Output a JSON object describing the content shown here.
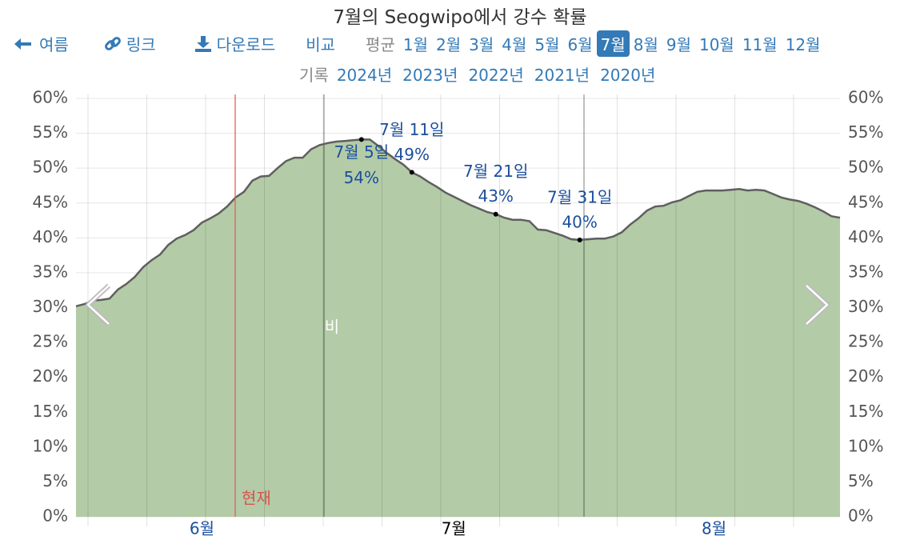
{
  "header": {
    "title": "7월의 Seogwipo에서 강수 확률"
  },
  "nav": {
    "back": "여름",
    "link": "링크",
    "download": "다운로드",
    "compare": "비교",
    "average": "평균",
    "months": [
      "1월",
      "2월",
      "3월",
      "4월",
      "5월",
      "6월",
      "7월",
      "8월",
      "9월",
      "10월",
      "11월",
      "12월"
    ],
    "active_month_index": 6,
    "history": "기록",
    "years": [
      "2024년",
      "2023년",
      "2022년",
      "2021년",
      "2020년"
    ]
  },
  "chart_data": {
    "type": "area",
    "categories": [
      null,
      null,
      null,
      null,
      null,
      null,
      null,
      null,
      null,
      null,
      null,
      null,
      null,
      null,
      null,
      "6월",
      null,
      null,
      null,
      null,
      null,
      null,
      null,
      null,
      null,
      null,
      null,
      null,
      null,
      null,
      null,
      null,
      null,
      null,
      null,
      null,
      null,
      null,
      null,
      null,
      null,
      null,
      null,
      null,
      null,
      "7월",
      null,
      null,
      null,
      null,
      null,
      null,
      null,
      null,
      null,
      null,
      null,
      null,
      null,
      null,
      null,
      null,
      null,
      null,
      null,
      null,
      null,
      null,
      null,
      null,
      null,
      null,
      null,
      null,
      null,
      null,
      "8월",
      null,
      null,
      null,
      null,
      null,
      null,
      null,
      null,
      null,
      null,
      null,
      null,
      null,
      null,
      null
    ],
    "series": [
      {
        "name": "비",
        "color": "#b3cba7",
        "line_color": "#5f5f5f",
        "values": [
          30.2,
          30.5,
          31.0,
          31.1,
          31.3,
          32.6,
          33.4,
          34.4,
          35.8,
          36.8,
          37.6,
          39.0,
          39.9,
          40.4,
          41.1,
          42.2,
          42.8,
          43.5,
          44.5,
          45.8,
          46.6,
          48.2,
          48.8,
          48.9,
          50.0,
          51.0,
          51.5,
          51.5,
          52.7,
          53.3,
          53.6,
          53.8,
          53.9,
          54.0,
          54.1,
          54.1,
          53.2,
          52.2,
          51.3,
          50.5,
          49.4,
          48.8,
          48.0,
          47.3,
          46.5,
          45.9,
          45.3,
          44.7,
          44.2,
          43.7,
          43.4,
          42.9,
          42.6,
          42.6,
          42.4,
          41.2,
          41.1,
          40.7,
          40.3,
          39.8,
          39.7,
          39.8,
          39.9,
          39.9,
          40.2,
          40.8,
          41.9,
          42.8,
          43.9,
          44.5,
          44.6,
          45.1,
          45.4,
          46.0,
          46.6,
          46.8,
          46.8,
          46.8,
          46.9,
          47.0,
          46.8,
          46.9,
          46.8,
          46.3,
          45.8,
          45.5,
          45.3,
          44.9,
          44.4,
          43.8,
          43.1,
          42.9
        ],
        "value_labels": [
          null,
          null,
          null,
          null,
          null,
          null,
          null,
          null,
          null,
          null,
          null,
          null,
          null,
          null,
          null,
          null,
          null,
          null,
          null,
          null,
          null,
          null,
          null,
          null,
          null,
          null,
          null,
          null,
          null,
          null,
          null,
          null,
          null,
          null,
          "54%",
          null,
          null,
          null,
          null,
          null,
          "49%",
          null,
          null,
          null,
          null,
          null,
          null,
          null,
          null,
          null,
          "43%",
          null,
          null,
          null,
          null,
          null,
          null,
          null,
          null,
          null,
          "40%",
          null,
          null,
          null,
          null,
          null,
          null,
          null,
          null,
          null,
          null,
          null,
          null,
          null,
          null,
          null,
          null,
          null,
          null,
          null,
          null,
          null,
          null,
          null,
          null,
          null,
          null,
          null,
          null,
          null,
          null,
          null
        ],
        "point_labels": [
          null,
          null,
          null,
          null,
          null,
          null,
          null,
          null,
          null,
          null,
          null,
          null,
          null,
          null,
          null,
          null,
          null,
          null,
          null,
          null,
          null,
          null,
          null,
          null,
          null,
          null,
          null,
          null,
          null,
          null,
          null,
          null,
          null,
          null,
          "7월 5일",
          null,
          null,
          null,
          null,
          null,
          "7월 11일",
          null,
          null,
          null,
          null,
          null,
          null,
          null,
          null,
          null,
          "7월 21일",
          null,
          null,
          null,
          null,
          null,
          null,
          null,
          null,
          null,
          "7월 31일",
          null,
          null,
          null,
          null,
          null,
          null,
          null,
          null,
          null,
          null,
          null,
          null,
          null,
          null,
          null,
          null,
          null,
          null,
          null,
          null,
          null,
          null,
          null,
          null,
          null,
          null,
          null,
          null,
          null,
          null,
          null
        ]
      }
    ],
    "ylim": [
      0,
      60
    ],
    "yticks": [
      {
        "value": 0,
        "label": "0%"
      },
      {
        "value": 5,
        "label": "5%"
      },
      {
        "value": 10,
        "label": "10%"
      },
      {
        "value": 15,
        "label": "15%"
      },
      {
        "value": 20,
        "label": "20%"
      },
      {
        "value": 25,
        "label": "25%"
      },
      {
        "value": 30,
        "label": "30%"
      },
      {
        "value": 35,
        "label": "35%"
      },
      {
        "value": 40,
        "label": "40%"
      },
      {
        "value": 45,
        "label": "45%"
      },
      {
        "value": 50,
        "label": "50%"
      },
      {
        "value": 55,
        "label": "55%"
      },
      {
        "value": 60,
        "label": "60%"
      }
    ],
    "y2lim": [
      0,
      60
    ],
    "y2ticks": [
      {
        "value": 0,
        "label": "0%"
      },
      {
        "value": 5,
        "label": "5%"
      },
      {
        "value": 10,
        "label": "10%"
      },
      {
        "value": 15,
        "label": "15%"
      },
      {
        "value": 20,
        "label": "20%"
      },
      {
        "value": 25,
        "label": "25%"
      },
      {
        "value": 30,
        "label": "30%"
      },
      {
        "value": 35,
        "label": "35%"
      },
      {
        "value": 40,
        "label": "40%"
      },
      {
        "value": 45,
        "label": "45%"
      },
      {
        "value": 50,
        "label": "50%"
      },
      {
        "value": 55,
        "label": "55%"
      },
      {
        "value": 60,
        "label": "60%"
      }
    ],
    "grid": true,
    "now_label": "현재"
  }
}
